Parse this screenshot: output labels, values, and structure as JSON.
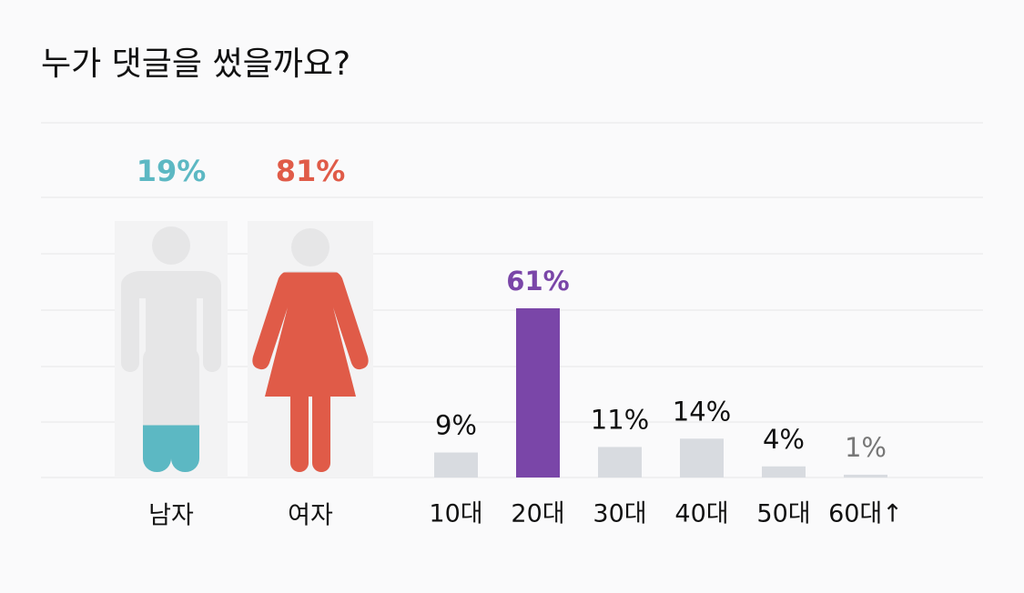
{
  "chart_data": [
    {
      "type": "pictogram",
      "title": "누가 댓글을 썼을까요?",
      "categories": [
        "남자",
        "여자"
      ],
      "values": [
        19,
        81
      ],
      "value_labels": [
        "19%",
        "81%"
      ],
      "colors": [
        "#5cb8c3",
        "#e05b48"
      ]
    },
    {
      "type": "bar",
      "categories": [
        "10대",
        "20대",
        "30대",
        "40대",
        "50대",
        "60대↑"
      ],
      "values": [
        9,
        61,
        11,
        14,
        4,
        1
      ],
      "value_labels": [
        "9%",
        "61%",
        "11%",
        "14%",
        "4%",
        "1%"
      ],
      "colors": [
        "#d8dbe0",
        "#7a46a8",
        "#d8dbe0",
        "#d8dbe0",
        "#d8dbe0",
        "#d8dbe0"
      ],
      "label_colors": [
        "#111111",
        "#7a46a8",
        "#111111",
        "#111111",
        "#111111",
        "#777777"
      ]
    }
  ]
}
